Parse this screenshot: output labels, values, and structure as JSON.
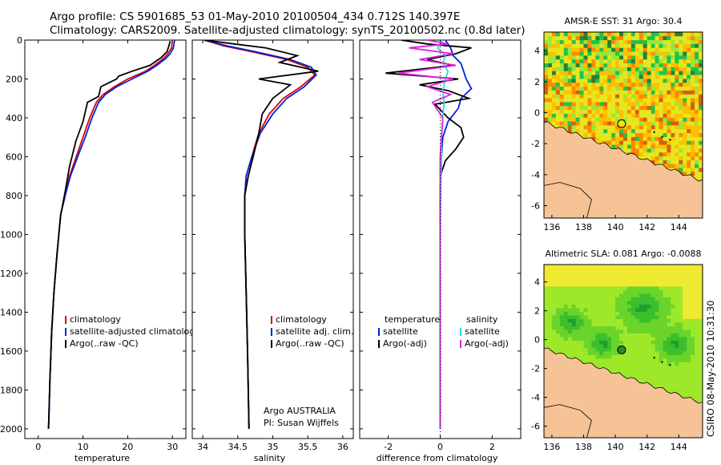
{
  "header": {
    "line1": "Argo profile: CS 5901685_53 01-May-2010 20100504_434 0.712S 140.397E",
    "line2": "Climatology: CARS2009. Satellite-adjusted climatology: synTS_20100502.nc (0.8d later)"
  },
  "side_stamp": "CSIRO 08-May-2010 10:31:30",
  "colors": {
    "clim": "#dd0000",
    "sat": "#0022dd",
    "argo": "#000000",
    "cyan": "#22dddd",
    "magenta": "#dd22dd",
    "land": "#f5c396"
  },
  "chart_data": [
    {
      "type": "line",
      "name": "temperature",
      "xlabel": "temperature",
      "xlim": [
        -3,
        33
      ],
      "ylim": [
        2050,
        0
      ],
      "xticks": [
        0,
        10,
        20,
        30
      ],
      "yticks": [
        0,
        200,
        400,
        600,
        800,
        1000,
        1200,
        1400,
        1600,
        1800,
        2000
      ],
      "legend": [
        "climatology",
        "satellite-adjusted climatology",
        "Argo(..raw -QC)"
      ],
      "series": [
        {
          "name": "climatology",
          "color": "clim",
          "x": [
            30,
            29.8,
            29,
            28,
            26,
            24,
            20,
            17,
            14.5,
            13,
            11.5,
            10,
            8.5,
            7,
            6,
            5,
            4.2,
            3.5,
            3,
            2.6,
            2.3
          ],
          "y": [
            0,
            40,
            70,
            95,
            130,
            160,
            200,
            240,
            280,
            320,
            400,
            500,
            600,
            700,
            800,
            900,
            1100,
            1300,
            1500,
            1750,
            2000
          ]
        },
        {
          "name": "satellite-adjusted climatology",
          "color": "sat",
          "x": [
            30.5,
            30.2,
            29.5,
            28.5,
            26.5,
            24.5,
            21,
            17.5,
            15,
            13.5,
            12,
            10.5,
            8.8,
            7.2,
            6,
            5,
            4.2,
            3.5,
            3,
            2.6,
            2.3
          ],
          "y": [
            0,
            40,
            70,
            95,
            130,
            160,
            200,
            240,
            280,
            320,
            400,
            500,
            600,
            700,
            800,
            900,
            1100,
            1300,
            1500,
            1750,
            2000
          ]
        },
        {
          "name": "Argo(..raw -QC)",
          "color": "argo",
          "x": [
            29.5,
            29.2,
            28.8,
            27.5,
            25,
            21,
            18,
            17.5,
            14,
            13.5,
            11,
            10,
            8.4,
            7,
            6,
            5,
            4.2,
            3.5,
            3,
            2.6,
            2.3
          ],
          "y": [
            5,
            30,
            60,
            90,
            130,
            160,
            185,
            200,
            240,
            290,
            320,
            420,
            520,
            650,
            780,
            900,
            1100,
            1300,
            1500,
            1750,
            2000
          ]
        }
      ]
    },
    {
      "type": "line",
      "name": "salinity",
      "xlabel": "salinity",
      "xlim": [
        33.85,
        36.15
      ],
      "ylim": [
        2050,
        0
      ],
      "xticks": [
        34,
        34.5,
        35,
        35.5,
        36
      ],
      "legend": [
        "climatology",
        "satellite adj. clim.",
        "Argo(..raw -QC)"
      ],
      "annotation": [
        "Argo AUSTRALIA",
        "PI: Susan Wijffels"
      ],
      "series": [
        {
          "name": "climatology",
          "color": "clim",
          "x": [
            34.02,
            34.3,
            34.7,
            35.2,
            35.5,
            35.6,
            35.4,
            35.15,
            34.95,
            34.8,
            34.7,
            34.62,
            34.6,
            34.6,
            34.62,
            34.64,
            34.65,
            34.66
          ],
          "y": [
            0,
            30,
            60,
            100,
            140,
            180,
            240,
            300,
            380,
            480,
            600,
            700,
            800,
            1000,
            1300,
            1600,
            1800,
            2000
          ]
        },
        {
          "name": "satellite adj. clim.",
          "color": "sat",
          "x": [
            34.03,
            34.35,
            34.75,
            35.25,
            35.55,
            35.62,
            35.45,
            35.2,
            35,
            34.82,
            34.7,
            34.62,
            34.6,
            34.6,
            34.62,
            34.64,
            34.65,
            34.66
          ],
          "y": [
            0,
            30,
            60,
            100,
            140,
            180,
            240,
            300,
            380,
            480,
            600,
            700,
            800,
            1000,
            1300,
            1600,
            1800,
            2000
          ]
        },
        {
          "name": "Argo(..raw -QC)",
          "color": "argo",
          "x": [
            34.02,
            34.45,
            34.9,
            35.35,
            35.1,
            35.65,
            34.8,
            35.25,
            35.0,
            34.85,
            34.8,
            34.72,
            34.65,
            34.6,
            34.6,
            34.62,
            34.64,
            34.66
          ],
          "y": [
            0,
            20,
            40,
            80,
            115,
            160,
            200,
            230,
            300,
            380,
            480,
            600,
            700,
            800,
            1000,
            1300,
            1600,
            2000
          ]
        }
      ]
    },
    {
      "type": "line",
      "name": "difference",
      "xlabel": "difference from climatology",
      "xlim": [
        -3.1,
        3.1
      ],
      "ylim": [
        2050,
        0
      ],
      "xticks": [
        -2,
        0,
        2
      ],
      "legend_t": [
        "temperature",
        "satellite",
        "Argo(-adj)"
      ],
      "legend_s": [
        "salinity",
        "satellite",
        "Argo(-adj)"
      ],
      "series": [
        {
          "name": "temperature satellite",
          "color": "sat",
          "x": [
            0.2,
            0.4,
            0.5,
            0.8,
            0.9,
            1.0,
            1.2,
            0.8,
            0.7,
            0.3,
            0.1,
            0.05,
            0,
            0,
            0,
            0
          ],
          "y": [
            0,
            40,
            80,
            120,
            160,
            200,
            250,
            300,
            350,
            420,
            500,
            600,
            800,
            1200,
            1600,
            2000
          ]
        },
        {
          "name": "temperature Argo(-adj)",
          "color": "argo",
          "x": [
            -1.5,
            -0.5,
            1.2,
            0.6,
            -0.5,
            0.5,
            -2.1,
            0.7,
            -0.8,
            0.3,
            1.1,
            -0.2,
            0.3,
            0.8,
            0.9,
            0.6,
            0.2,
            0.05,
            0,
            0,
            0,
            0,
            0
          ],
          "y": [
            0,
            20,
            40,
            70,
            100,
            130,
            170,
            200,
            230,
            260,
            300,
            330,
            400,
            450,
            500,
            560,
            620,
            680,
            750,
            900,
            1200,
            1600,
            2000
          ]
        },
        {
          "name": "salinity satellite",
          "color": "cyan",
          "x": [
            0.1,
            -0.1,
            0.2,
            0.1,
            0.3,
            0.2,
            0.1,
            0.15,
            0.1,
            0.05,
            0.05,
            0.02,
            0,
            0,
            0
          ],
          "y": [
            0,
            40,
            80,
            120,
            160,
            200,
            260,
            320,
            400,
            500,
            600,
            800,
            1200,
            1600,
            2000
          ]
        },
        {
          "name": "salinity Argo(-adj)",
          "color": "magenta",
          "x": [
            -0.5,
            0.3,
            -1.2,
            0.5,
            -0.8,
            0.6,
            -1.6,
            0.5,
            -0.5,
            0.4,
            -0.3,
            0.1,
            0,
            0,
            0
          ],
          "y": [
            0,
            20,
            40,
            70,
            100,
            130,
            170,
            200,
            240,
            280,
            320,
            400,
            600,
            1000,
            2000
          ]
        }
      ]
    },
    {
      "type": "heatmap",
      "name": "sst-map",
      "title": "AMSR-E SST: 31  Argo: 30.4",
      "xlim": [
        135.5,
        145.5
      ],
      "ylim": [
        -6.8,
        5.2
      ],
      "xticks": [
        136,
        138,
        140,
        142,
        144
      ],
      "yticks": [
        -6,
        -4,
        -2,
        0,
        2,
        4
      ],
      "argo_position": {
        "lon": 140.397,
        "lat": -0.712
      },
      "palette": [
        "#2e7d32",
        "#22c24a",
        "#9ae63a",
        "#e6e620",
        "#ffc000",
        "#ff8a00",
        "#d06010",
        "#a04010",
        "#1e40ff",
        "#0a0a3a"
      ]
    },
    {
      "type": "heatmap",
      "name": "sla-map",
      "title": "Altimetric SLA: 0.081  Argo: -0.0088",
      "xlim": [
        135.5,
        145.5
      ],
      "ylim": [
        -6.8,
        5.2
      ],
      "xticks": [
        136,
        138,
        140,
        142,
        144
      ],
      "yticks": [
        -6,
        -4,
        -2,
        0,
        2,
        4
      ],
      "argo_position": {
        "lon": 140.397,
        "lat": -0.712
      },
      "palette": [
        "#1f9e30",
        "#3cbf2c",
        "#6ad42a",
        "#9ee82a",
        "#cdeb2a",
        "#eeea30"
      ]
    }
  ]
}
